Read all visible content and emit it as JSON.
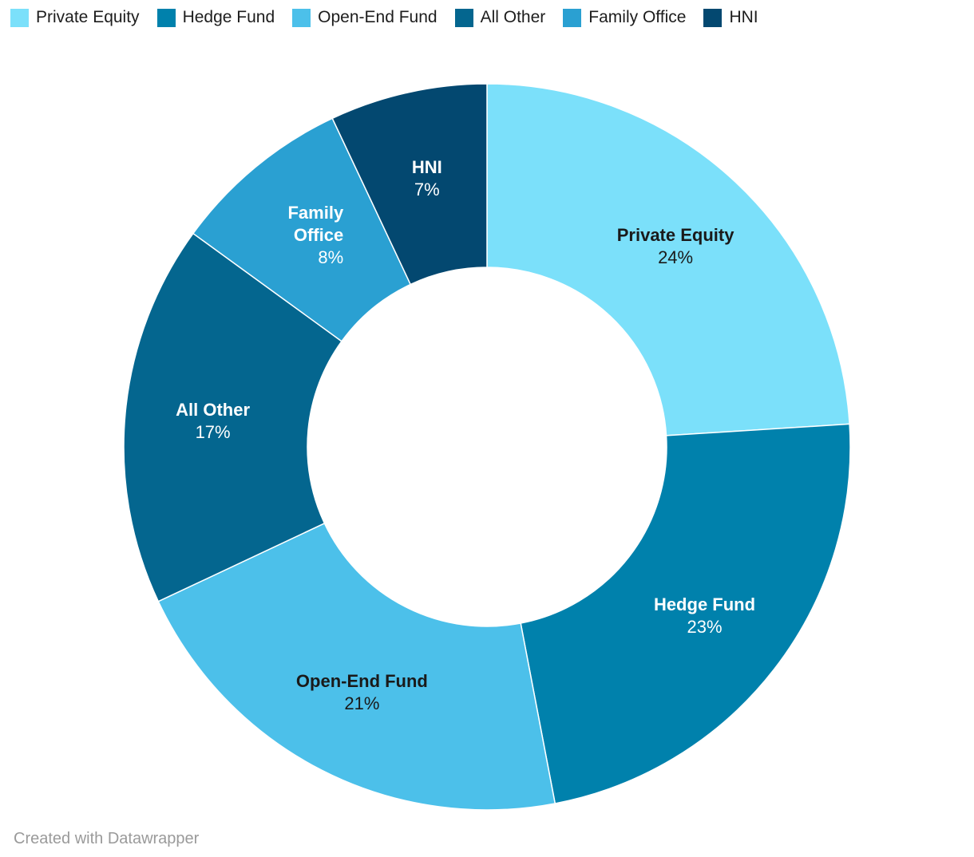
{
  "meta": {
    "attribution": "Created with Datawrapper"
  },
  "chart_data": {
    "type": "pie",
    "subtype": "donut",
    "title": "",
    "unit": "%",
    "legend_position": "top",
    "inner_radius_ratio": 0.495,
    "start_angle": 0,
    "clockwise": true,
    "categories": [
      "Private Equity",
      "Hedge Fund",
      "Open-End Fund",
      "All Other",
      "Family Office",
      "HNI"
    ],
    "values": [
      24,
      23,
      21,
      17,
      8,
      7
    ],
    "slices": [
      {
        "label": "Private Equity",
        "value": 24,
        "percent_label": "24%",
        "color": "#7BE0FA",
        "label_color": "#1a1a1a",
        "label_lines": [
          "Private Equity"
        ],
        "align": "center"
      },
      {
        "label": "Hedge Fund",
        "value": 23,
        "percent_label": "23%",
        "color": "#0081AC",
        "label_color": "#ffffff",
        "label_lines": [
          "Hedge Fund"
        ],
        "align": "center"
      },
      {
        "label": "Open-End Fund",
        "value": 21,
        "percent_label": "21%",
        "color": "#4CC0EA",
        "label_color": "#1a1a1a",
        "label_lines": [
          "Open-End Fund"
        ],
        "align": "center"
      },
      {
        "label": "All Other",
        "value": 17,
        "percent_label": "17%",
        "color": "#04668F",
        "label_color": "#ffffff",
        "label_lines": [
          "All Other"
        ],
        "align": "center"
      },
      {
        "label": "Family Office",
        "value": 8,
        "percent_label": "8%",
        "color": "#2AA0D2",
        "label_color": "#ffffff",
        "label_lines": [
          "Family",
          "Office"
        ],
        "align": "right"
      },
      {
        "label": "HNI",
        "value": 7,
        "percent_label": "7%",
        "color": "#034870",
        "label_color": "#ffffff",
        "label_lines": [
          "HNI"
        ],
        "align": "center"
      }
    ]
  }
}
